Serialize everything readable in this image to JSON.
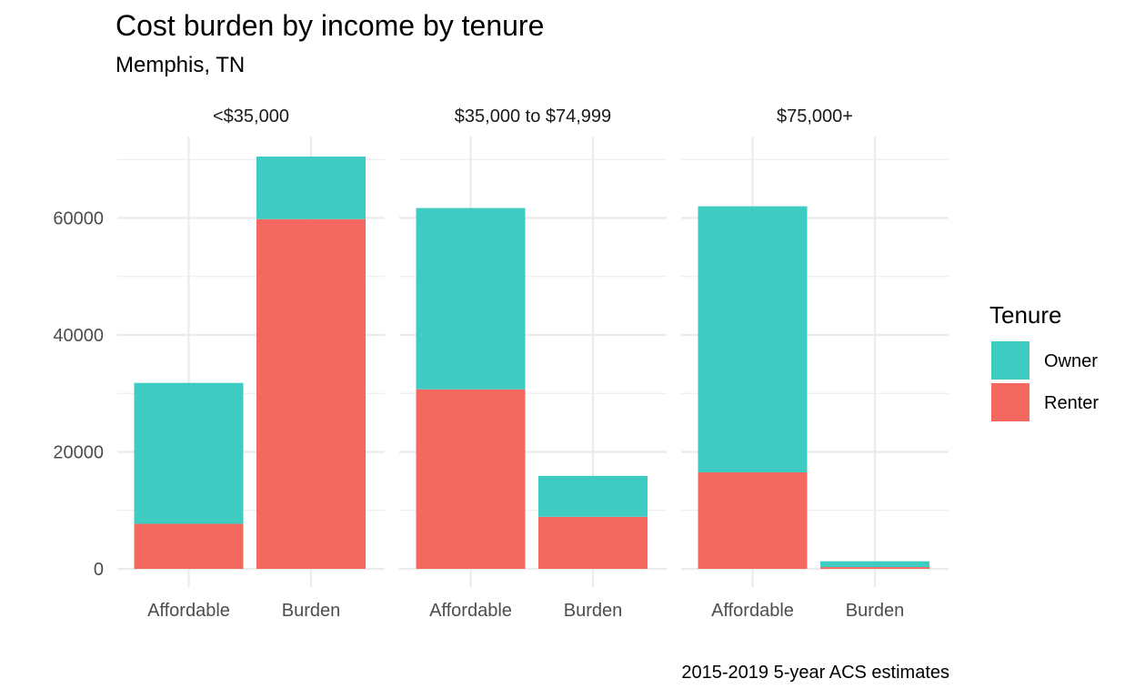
{
  "title": "Cost burden by income by tenure",
  "subtitle": "Memphis, TN",
  "caption": "2015-2019 5-year ACS estimates",
  "chart_data": {
    "type": "bar",
    "stacked": true,
    "facets": [
      "<$35,000",
      "$35,000 to $74,999",
      "$75,000+"
    ],
    "categories": [
      "Affordable",
      "Burden"
    ],
    "series": [
      {
        "name": "Owner",
        "color": "#3ECBC2",
        "values": [
          [
            24100,
            10700
          ],
          [
            31000,
            7000
          ],
          [
            45500,
            1000
          ]
        ]
      },
      {
        "name": "Renter",
        "color": "#F4695F",
        "values": [
          [
            7700,
            59800
          ],
          [
            30700,
            8900
          ],
          [
            16500,
            300
          ]
        ]
      }
    ],
    "y_ticks": [
      0,
      20000,
      40000,
      60000
    ],
    "ylim": [
      0,
      73000
    ],
    "legend": {
      "title": "Tenure",
      "position": "right"
    },
    "grid": true
  }
}
